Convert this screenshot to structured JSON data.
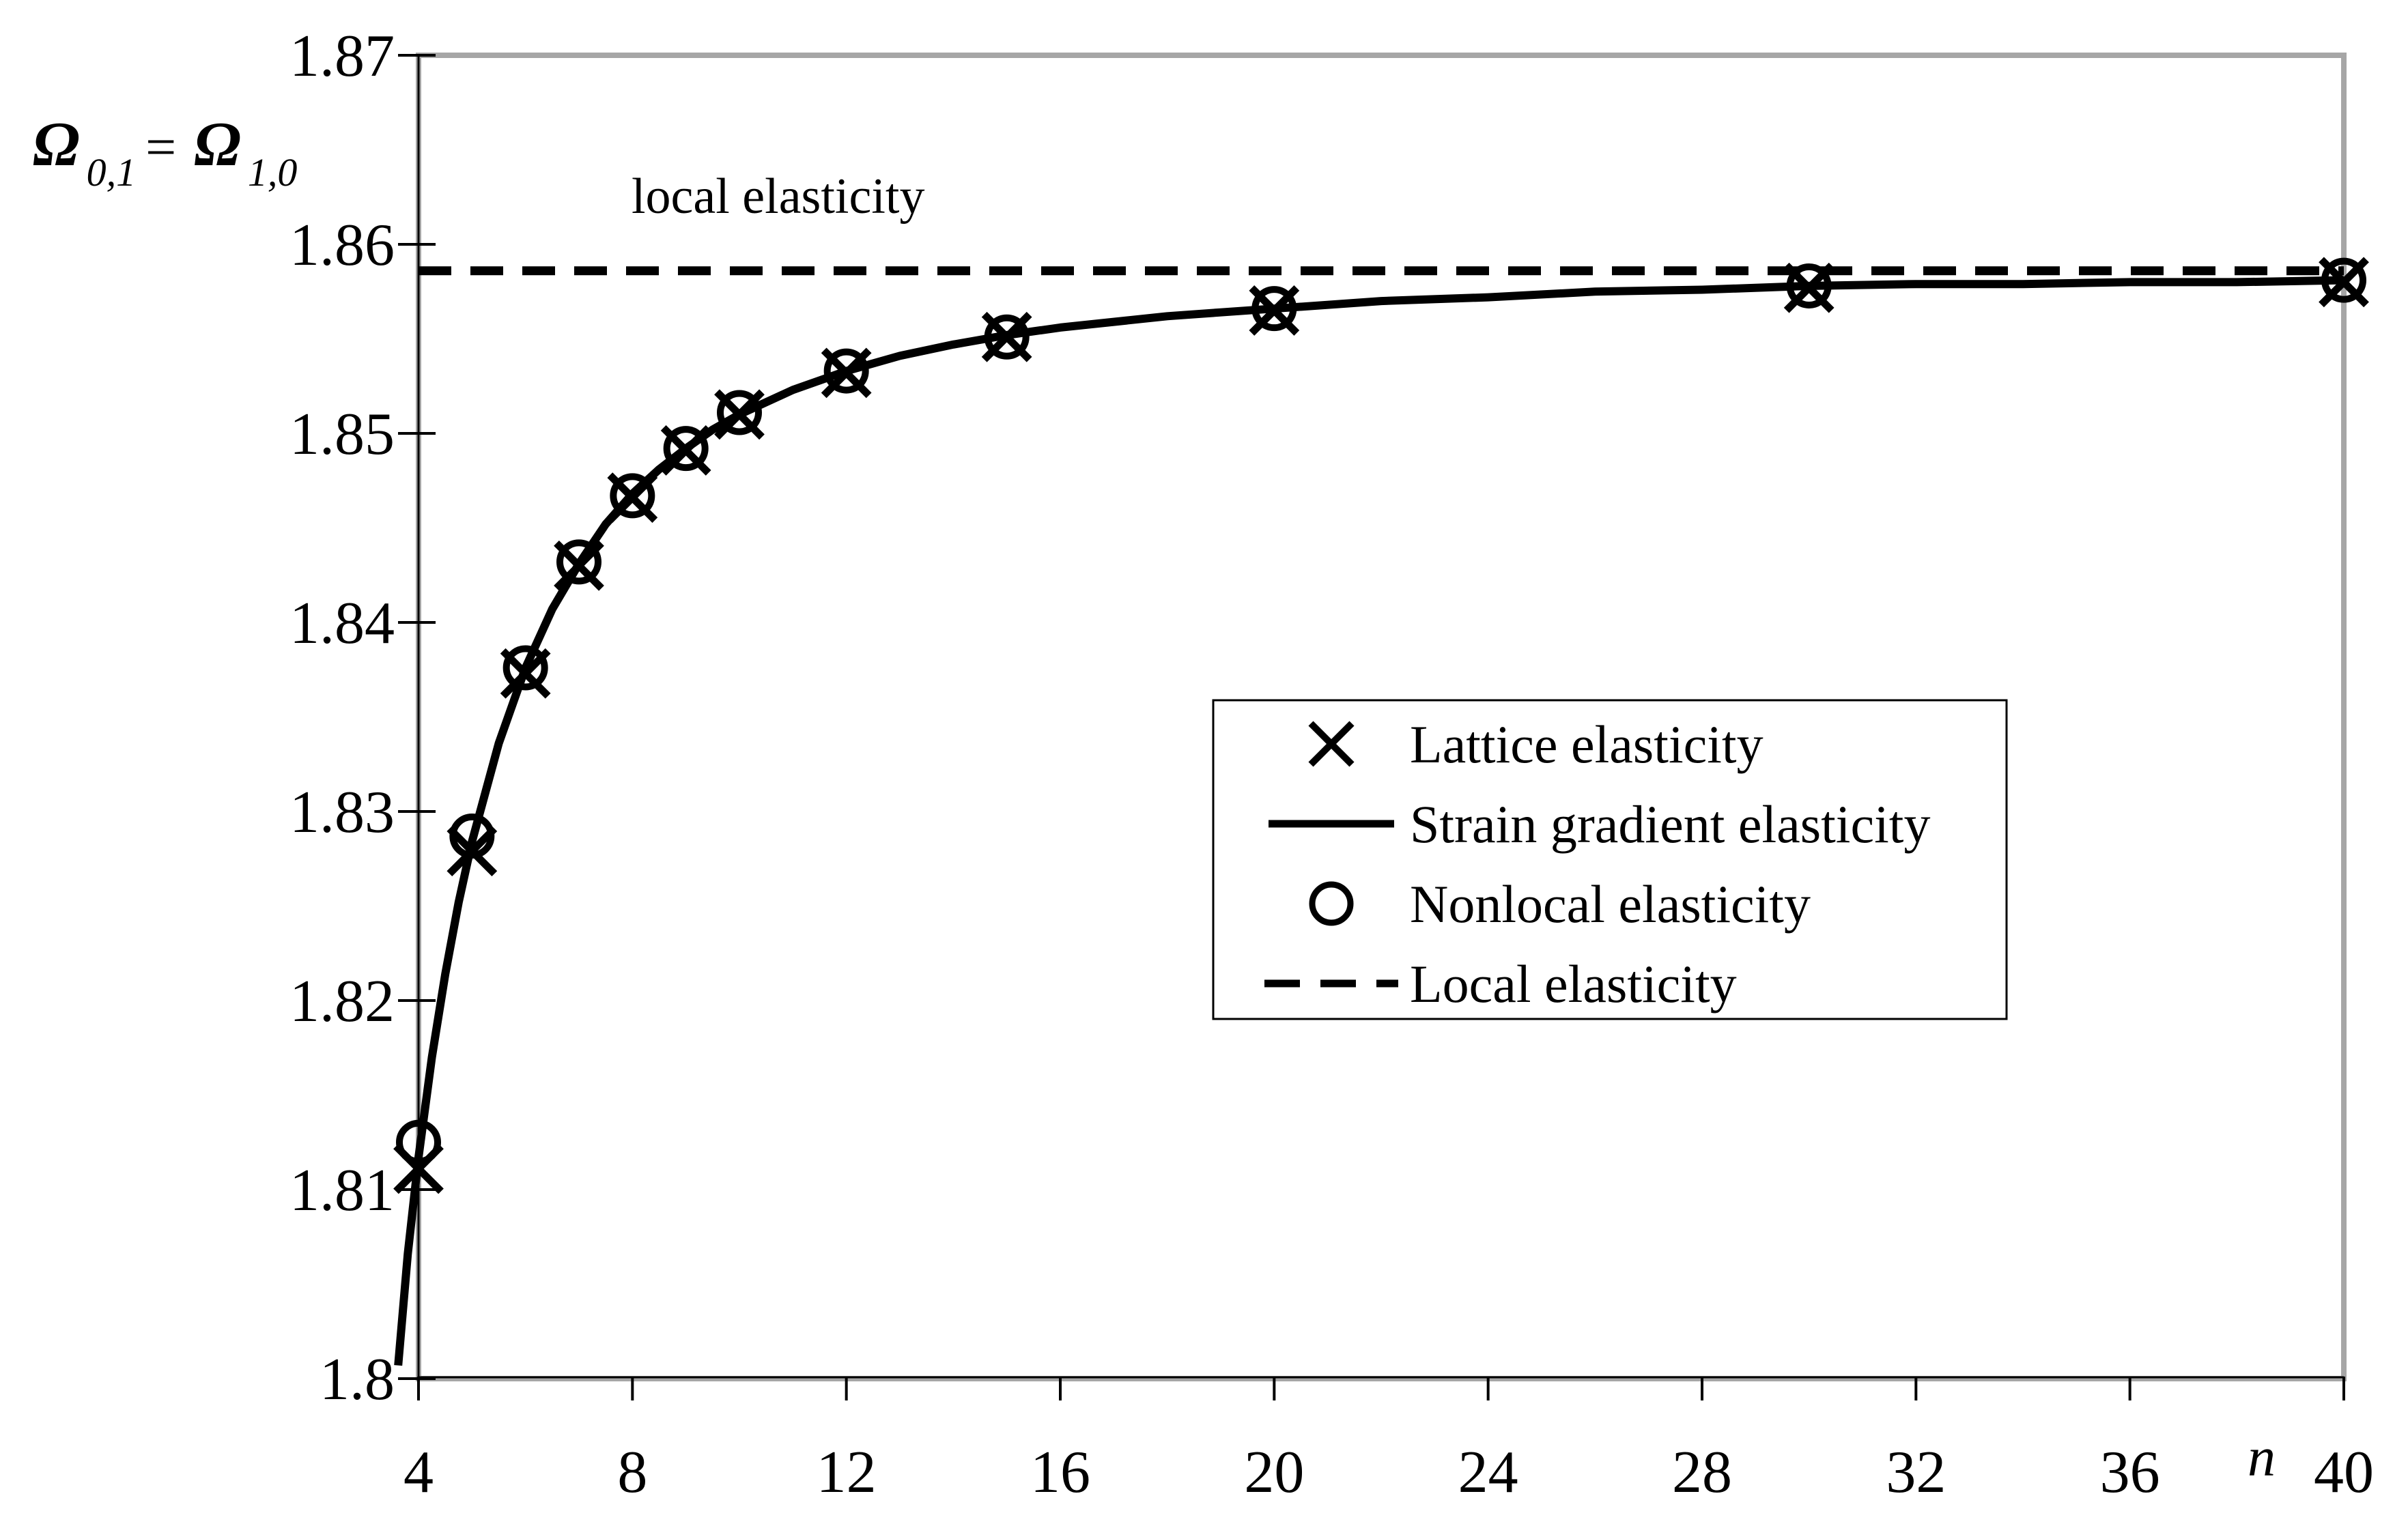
{
  "figure": {
    "annotation": "local elasticity",
    "x_axis_title": "n",
    "y_axis_title": {
      "omega1": "Ω",
      "sub1": "0,1",
      "equals": " = ",
      "omega2": "Ω",
      "sub2": "1,0"
    }
  },
  "legend": {
    "items": [
      {
        "symbol": "x-marker",
        "label": "Lattice elasticity"
      },
      {
        "symbol": "solid-line",
        "label": "Strain gradient elasticity"
      },
      {
        "symbol": "circle-marker",
        "label": "Nonlocal elasticity"
      },
      {
        "symbol": "dashed-line",
        "label": "Local elasticity"
      }
    ]
  },
  "colors": {
    "ink": "#000000",
    "plot_border_gray": "#a6a6a6",
    "background": "#ffffff"
  },
  "chart_data": {
    "type": "line",
    "title": "",
    "xlabel": "n",
    "ylabel": "Ω0,1 = Ω1,0",
    "xlim": [
      4,
      40
    ],
    "ylim": [
      1.8,
      1.87
    ],
    "grid": false,
    "legend_position": "center-right",
    "x_ticks": [
      4,
      8,
      12,
      16,
      20,
      24,
      28,
      32,
      36,
      40
    ],
    "x_tick_labels": [
      "4",
      "8",
      "12",
      "16",
      "20",
      "24",
      "28",
      "32",
      "36",
      "40"
    ],
    "y_ticks": [
      1.8,
      1.81,
      1.82,
      1.83,
      1.84,
      1.85,
      1.86,
      1.87
    ],
    "y_tick_labels": [
      "1.8",
      "1.81",
      "1.82",
      "1.83",
      "1.84",
      "1.85",
      "1.86",
      "1.87"
    ],
    "annotation": "local elasticity",
    "series": [
      {
        "name": "Lattice elasticity",
        "marker": "x",
        "x": [
          4,
          5,
          6,
          7,
          8,
          9,
          10,
          12,
          15,
          20,
          30,
          40
        ],
        "y": [
          1.8111,
          1.8279,
          1.8373,
          1.843,
          1.8466,
          1.8491,
          1.851,
          1.8532,
          1.8551,
          1.8565,
          1.8577,
          1.858
        ]
      },
      {
        "name": "Strain gradient elasticity",
        "style": "solid-line",
        "x": [
          3.62,
          3.8,
          4,
          4.25,
          4.5,
          4.75,
          5,
          5.5,
          6,
          6.5,
          7,
          7.5,
          8,
          8.5,
          9,
          9.5,
          10,
          11,
          12,
          13,
          14,
          15,
          16,
          17,
          18,
          19,
          20,
          22,
          24,
          26,
          28,
          30,
          32,
          34,
          36,
          38,
          40
        ],
        "y": [
          1.8007,
          1.8066,
          1.8117,
          1.817,
          1.8214,
          1.8252,
          1.8284,
          1.8336,
          1.8376,
          1.8407,
          1.8431,
          1.8452,
          1.8468,
          1.8481,
          1.8492,
          1.8502,
          1.851,
          1.8523,
          1.8533,
          1.8541,
          1.8547,
          1.8552,
          1.8556,
          1.8559,
          1.8562,
          1.8564,
          1.8566,
          1.857,
          1.8572,
          1.8575,
          1.8576,
          1.8578,
          1.8579,
          1.8579,
          1.858,
          1.858,
          1.8581
        ]
      },
      {
        "name": "Nonlocal elasticity",
        "marker": "circle",
        "x": [
          4,
          5,
          6,
          7,
          8,
          9,
          10,
          12,
          15,
          20,
          30,
          40
        ],
        "y": [
          1.8125,
          1.8287,
          1.8376,
          1.8432,
          1.8467,
          1.8492,
          1.8511,
          1.8533,
          1.8551,
          1.8566,
          1.8578,
          1.8581
        ]
      },
      {
        "name": "Local elasticity",
        "style": "dashed-hline",
        "value": 1.8586
      }
    ]
  }
}
